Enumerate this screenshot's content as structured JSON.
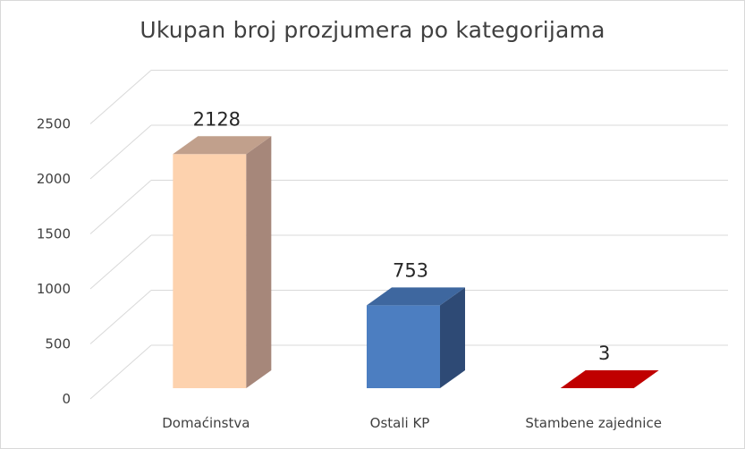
{
  "chart_data": {
    "type": "bar",
    "title": "Ukupan broj prozjumera po kategorijama",
    "xlabel": "",
    "ylabel": "",
    "categories": [
      "Domaćinstva",
      "Ostali KP",
      "Stambene zajednice"
    ],
    "values": [
      2128,
      753,
      3
    ],
    "data_labels": [
      "2128",
      "753",
      "3"
    ],
    "ylim": [
      0,
      2500
    ],
    "yticks": [
      "0",
      "500",
      "1000",
      "1500",
      "2000",
      "2500"
    ],
    "grid": true,
    "legend": "none",
    "style": "3d-column",
    "bar_colors": [
      {
        "front": "#fdd2ae",
        "side": "#a6877a",
        "top": "#c1a08c"
      },
      {
        "front": "#4c7ec1",
        "side": "#2e4a75",
        "top": "#3e679f"
      },
      {
        "front": "#e00000",
        "side": "#8e0000",
        "top": "#c00000"
      }
    ]
  }
}
